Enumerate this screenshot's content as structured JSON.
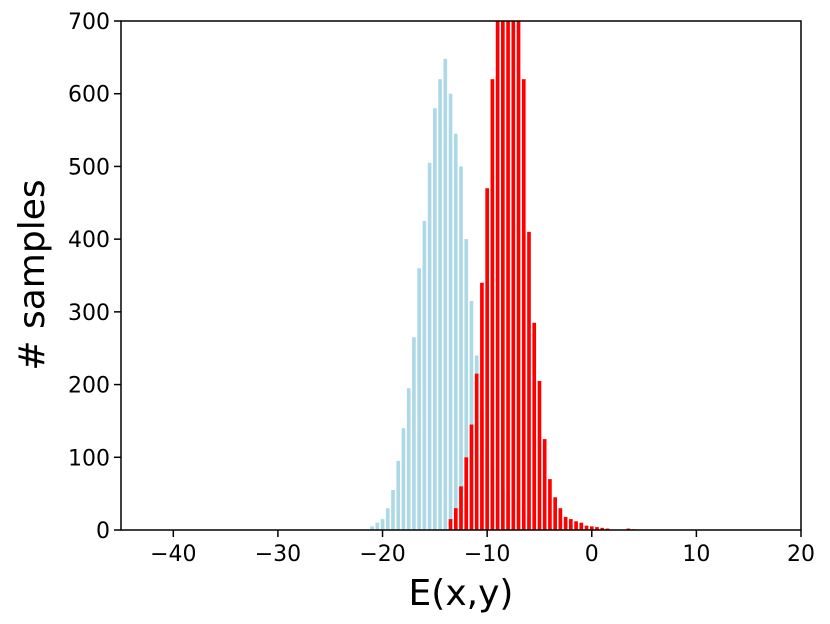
{
  "chart_data": {
    "type": "bar",
    "title": "",
    "xlabel": "E(x,y)",
    "ylabel": "# samples",
    "xlim": [
      -45,
      20
    ],
    "ylim": [
      0,
      700
    ],
    "xticks": [
      -40,
      -30,
      -20,
      -10,
      0,
      10,
      20
    ],
    "yticks": [
      0,
      100,
      200,
      300,
      400,
      500,
      600,
      700
    ],
    "xtick_labels": [
      "−40",
      "−30",
      "−20",
      "−10",
      "0",
      "10",
      "20"
    ],
    "ytick_labels": [
      "0",
      "100",
      "200",
      "300",
      "400",
      "500",
      "600",
      "700"
    ],
    "grid": false,
    "legend": null,
    "bin_width": 0.5,
    "series": [
      {
        "color": "#add8e6",
        "x": [
          -21,
          -20.5,
          -20,
          -19.5,
          -19,
          -18.5,
          -18,
          -17.5,
          -17,
          -16.5,
          -16,
          -15.5,
          -15,
          -14.5,
          -14,
          -13.5,
          -13,
          -12.5,
          -12,
          -11.5,
          -11,
          -10.5,
          -10,
          -9.5,
          -9,
          -8.5,
          -8,
          -7.5,
          -7,
          -6.5,
          -6,
          -5.5,
          -5,
          -4.5,
          -4
        ],
        "values": [
          5,
          10,
          15,
          30,
          55,
          95,
          140,
          195,
          265,
          360,
          425,
          505,
          580,
          620,
          648,
          600,
          545,
          500,
          400,
          315,
          240,
          165,
          110,
          85,
          65,
          55,
          48,
          42,
          35,
          28,
          20,
          15,
          10,
          6,
          3
        ]
      },
      {
        "color": "#ff0000",
        "x": [
          -13.5,
          -13,
          -12.5,
          -12,
          -11.5,
          -11,
          -10.5,
          -10,
          -9.5,
          -9,
          -8.5,
          -8,
          -7.5,
          -7,
          -6.5,
          -6,
          -5.5,
          -5,
          -4.5,
          -4,
          -3.5,
          -3,
          -2.5,
          -2,
          -1.5,
          -1,
          -0.5,
          0,
          0.5,
          1,
          1.5,
          3.5,
          4
        ],
        "values": [
          15,
          30,
          60,
          100,
          145,
          215,
          340,
          470,
          620,
          700,
          700,
          700,
          700,
          700,
          620,
          410,
          285,
          205,
          125,
          70,
          45,
          30,
          18,
          15,
          12,
          10,
          6,
          5,
          4,
          3,
          2,
          2,
          1
        ]
      }
    ]
  }
}
